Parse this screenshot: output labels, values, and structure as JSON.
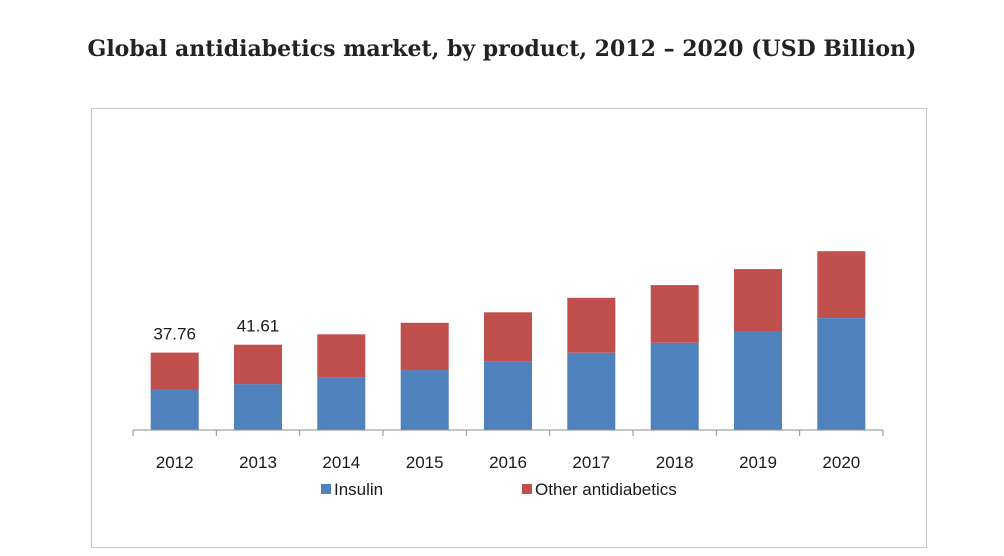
{
  "chart_data": {
    "type": "bar",
    "stacked": true,
    "title": "Global antidiabetics market, by product, 2012 – 2020 (USD Billion)",
    "categories": [
      "2012",
      "2013",
      "2014",
      "2015",
      "2016",
      "2017",
      "2018",
      "2019",
      "2020"
    ],
    "series": [
      {
        "name": "Insulin",
        "color": "#4f81bd",
        "values": [
          20.0,
          22.4,
          25.8,
          29.2,
          33.3,
          37.7,
          42.6,
          48.3,
          54.6
        ]
      },
      {
        "name": "Other antidiabetics",
        "color": "#c0504d",
        "values": [
          17.76,
          19.21,
          20.9,
          23.1,
          24.1,
          26.8,
          28.1,
          30.2,
          32.6
        ]
      }
    ],
    "data_labels": [
      {
        "category": "2012",
        "text": "37.76"
      },
      {
        "category": "2013",
        "text": "41.61"
      }
    ],
    "ylim": [
      0,
      100
    ],
    "y_axis_visible": false,
    "grid": false,
    "legend": "bottom-center"
  }
}
